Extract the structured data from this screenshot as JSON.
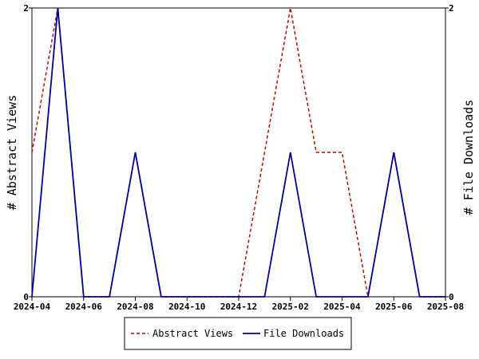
{
  "chart_data": {
    "type": "line",
    "x": [
      "2024-04",
      "2024-05",
      "2024-06",
      "2024-07",
      "2024-08",
      "2024-09",
      "2024-10",
      "2024-11",
      "2024-12",
      "2025-01",
      "2025-02",
      "2025-03",
      "2025-04",
      "2025-05",
      "2025-06",
      "2025-07",
      "2025-08"
    ],
    "x_range": [
      "2024-04",
      "2025-08"
    ],
    "x_ticks": [
      "2024-04",
      "2024-06",
      "2024-08",
      "2024-10",
      "2024-12",
      "2025-02",
      "2025-04",
      "2025-06",
      "2025-08"
    ],
    "series": [
      {
        "name": "Abstract Views",
        "axis": "left",
        "color": "#cc0000",
        "style": "dashed",
        "values": [
          1,
          2,
          0,
          0,
          1,
          0,
          0,
          0,
          0,
          1,
          2,
          1,
          1,
          0,
          1,
          0,
          0
        ]
      },
      {
        "name": "File Downloads",
        "axis": "right",
        "color": "#0000aa",
        "style": "solid",
        "values": [
          0,
          2,
          0,
          0,
          1,
          0,
          0,
          0,
          0,
          0,
          1,
          0,
          0,
          0,
          1,
          0,
          0
        ]
      }
    ],
    "ylabel_left": "# Abstract Views",
    "ylabel_right": "# File Downloads",
    "ylim_left": [
      0,
      2
    ],
    "ylim_right": [
      0,
      2
    ],
    "y_ticks_left": [
      "0",
      "2"
    ],
    "y_ticks_right": [
      "0",
      "2"
    ],
    "legend": {
      "placement": "bottom",
      "items": [
        "Abstract Views",
        "File Downloads"
      ]
    },
    "grid": false
  }
}
